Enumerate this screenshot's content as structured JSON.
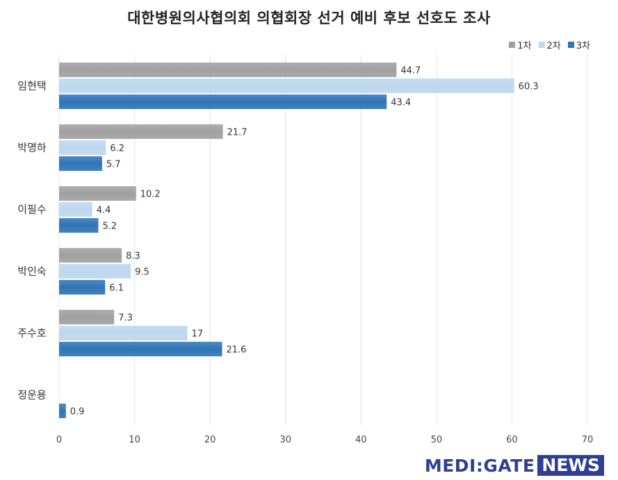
{
  "chart_data": {
    "type": "bar",
    "orientation": "horizontal",
    "title": "대한병원의사협의회 의협회장 선거 예비 후보 선호도 조사",
    "categories": [
      "임현택",
      "박명하",
      "이필수",
      "박인숙",
      "주수호",
      "정운용"
    ],
    "series": [
      {
        "name": "1차",
        "color": "#a0a0a0",
        "values": [
          44.7,
          21.7,
          10.2,
          8.3,
          7.3,
          null
        ]
      },
      {
        "name": "2차",
        "color": "#bdd7ee",
        "values": [
          60.3,
          6.2,
          4.4,
          9.5,
          17,
          null
        ]
      },
      {
        "name": "3차",
        "color": "#2e75b6",
        "values": [
          43.4,
          5.7,
          5.2,
          6.1,
          21.6,
          0.9
        ]
      }
    ],
    "value_labels": [
      [
        "44.7",
        "21.7",
        "10.2",
        "8.3",
        "7.3",
        ""
      ],
      [
        "60.3",
        "6.2",
        "4.4",
        "9.5",
        "17",
        ""
      ],
      [
        "43.4",
        "5.7",
        "5.2",
        "6.1",
        "21.6",
        "0.9"
      ]
    ],
    "xlim": [
      0,
      70
    ],
    "xticks": [
      "0",
      "10",
      "20",
      "30",
      "40",
      "50",
      "60",
      "70"
    ],
    "grid": true,
    "legend_position": "top-right"
  },
  "logo": {
    "main": "MEDI:GATE",
    "box": "NEWS"
  }
}
